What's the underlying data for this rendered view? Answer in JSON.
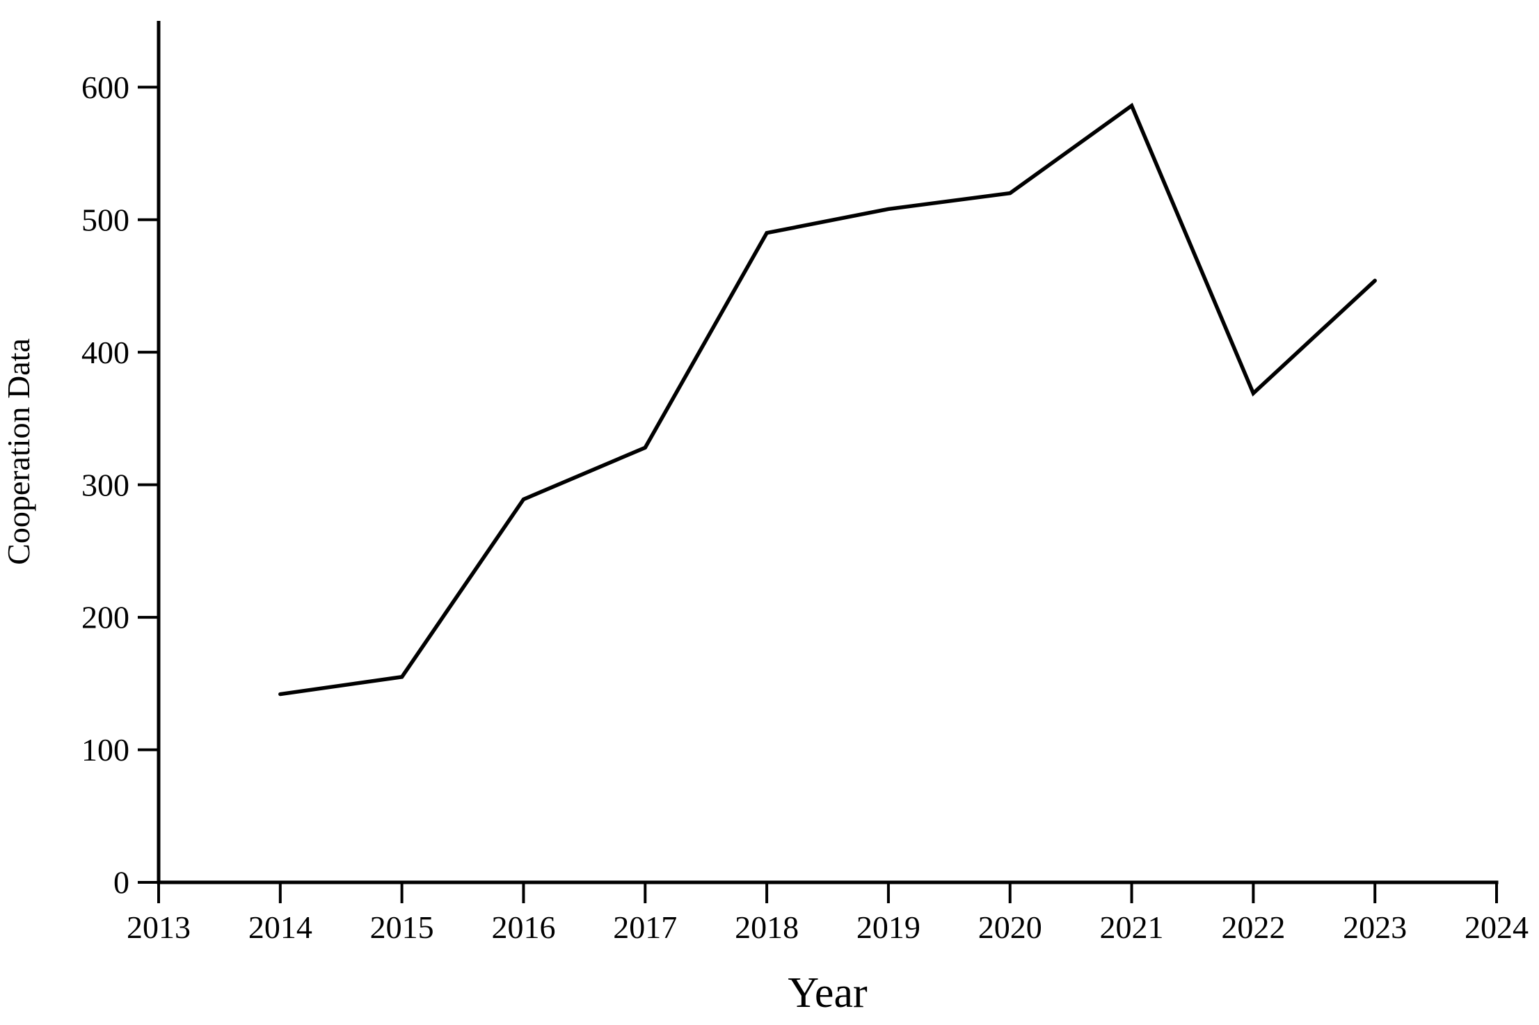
{
  "chart_data": {
    "type": "line",
    "title": "",
    "xlabel": "Year",
    "ylabel": "Cooperation Data",
    "x": [
      2014,
      2015,
      2016,
      2017,
      2018,
      2019,
      2020,
      2021,
      2022,
      2023
    ],
    "values": [
      142,
      155,
      289,
      328,
      490,
      508,
      520,
      586,
      369,
      454
    ],
    "x_ticks": [
      2013,
      2014,
      2015,
      2016,
      2017,
      2018,
      2019,
      2020,
      2021,
      2022,
      2023,
      2024
    ],
    "y_ticks": [
      0,
      100,
      200,
      300,
      400,
      500,
      600
    ],
    "xlim": [
      2013,
      2024
    ],
    "ylim": [
      0,
      650
    ],
    "grid": false,
    "legend": "none",
    "line_color": "#000000",
    "axis_color": "#000000",
    "background": "#ffffff"
  }
}
